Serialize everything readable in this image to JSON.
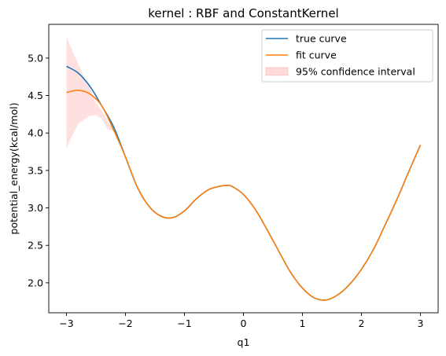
{
  "chart_data": {
    "type": "line",
    "title": "kernel : RBF and ConstantKernel",
    "xlabel": "q1",
    "ylabel": "potential_energy(kcal/mol)",
    "xlim": [
      -3.3,
      3.3
    ],
    "ylim": [
      1.6,
      5.45
    ],
    "xticks": [
      -3,
      -2,
      -1,
      0,
      1,
      2,
      3
    ],
    "xtick_labels": [
      "−3",
      "−2",
      "−1",
      "0",
      "1",
      "2",
      "3"
    ],
    "yticks": [
      2.0,
      2.5,
      3.0,
      3.5,
      4.0,
      4.5,
      5.0
    ],
    "ytick_labels": [
      "2.0",
      "2.5",
      "3.0",
      "3.5",
      "4.0",
      "4.5",
      "5.0"
    ],
    "grid": false,
    "legend_position": "top-right",
    "x": [
      -3.0,
      -2.8,
      -2.6,
      -2.4,
      -2.2,
      -2.0,
      -1.8,
      -1.6,
      -1.4,
      -1.2,
      -1.0,
      -0.8,
      -0.6,
      -0.4,
      -0.28,
      -0.2,
      0.0,
      0.2,
      0.4,
      0.6,
      0.8,
      1.0,
      1.2,
      1.4,
      1.6,
      1.8,
      2.0,
      2.2,
      2.4,
      2.6,
      2.8,
      3.0
    ],
    "series": [
      {
        "name": "true curve",
        "color": "#1f77b4",
        "values": [
          4.89,
          4.8,
          4.62,
          4.36,
          4.08,
          3.68,
          3.28,
          3.02,
          2.89,
          2.87,
          2.96,
          3.12,
          3.24,
          3.29,
          3.3,
          3.29,
          3.18,
          2.98,
          2.71,
          2.42,
          2.14,
          1.93,
          1.8,
          1.77,
          1.84,
          1.98,
          2.18,
          2.44,
          2.77,
          3.11,
          3.48,
          3.84
        ]
      },
      {
        "name": "fit curve",
        "color": "#ff7f0e",
        "values": [
          4.54,
          4.57,
          4.52,
          4.36,
          4.04,
          3.68,
          3.28,
          3.02,
          2.89,
          2.87,
          2.96,
          3.12,
          3.24,
          3.29,
          3.3,
          3.29,
          3.18,
          2.98,
          2.71,
          2.42,
          2.14,
          1.93,
          1.8,
          1.77,
          1.84,
          1.98,
          2.18,
          2.44,
          2.77,
          3.11,
          3.48,
          3.84
        ]
      }
    ],
    "confidence_interval": {
      "name": "95% confidence interval",
      "color": "#ff0000",
      "opacity": 0.12,
      "x": [
        -3.0,
        -2.9,
        -2.8,
        -2.7,
        -2.6,
        -2.5,
        -2.4,
        -2.3,
        -2.2,
        -2.1,
        -2.0
      ],
      "upper": [
        5.28,
        5.1,
        4.92,
        4.74,
        4.6,
        4.4,
        4.29,
        4.15,
        4.06,
        3.86,
        3.68
      ],
      "lower": [
        3.8,
        3.97,
        4.12,
        4.18,
        4.23,
        4.24,
        4.19,
        4.05,
        4.02,
        3.86,
        3.68
      ]
    }
  }
}
